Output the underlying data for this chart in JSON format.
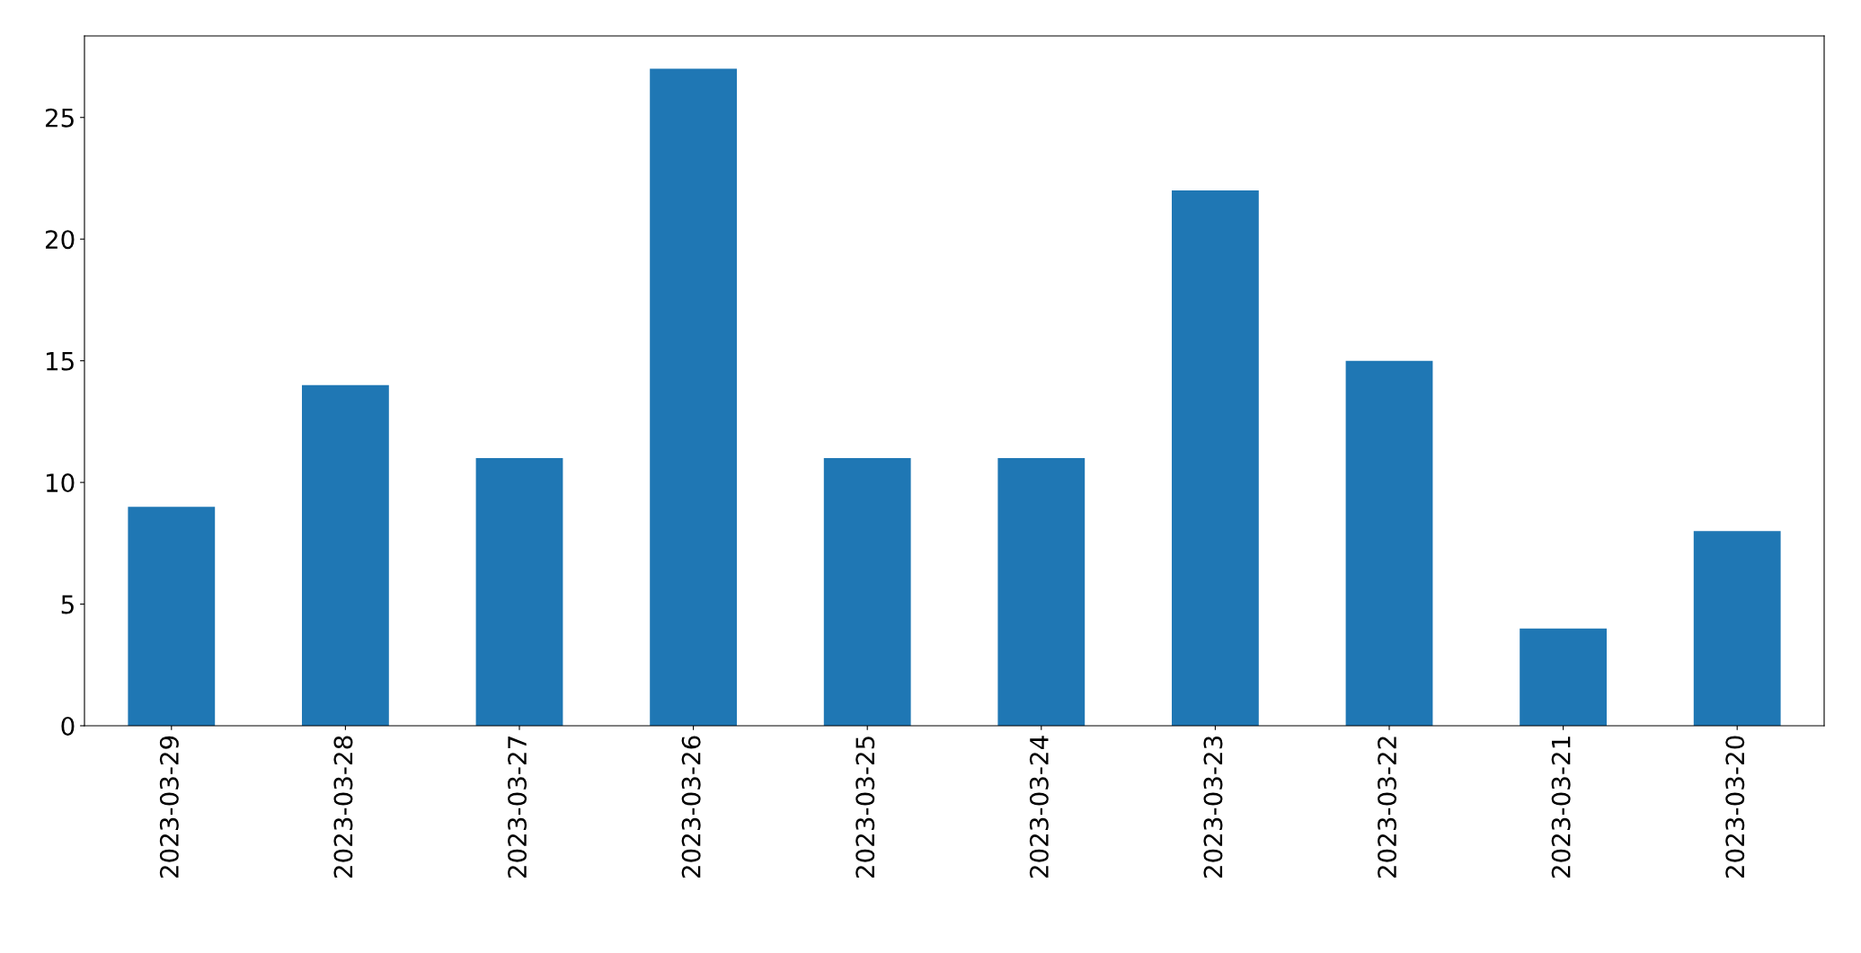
{
  "chart_data": {
    "type": "bar",
    "categories": [
      "2023-03-29",
      "2023-03-28",
      "2023-03-27",
      "2023-03-26",
      "2023-03-25",
      "2023-03-24",
      "2023-03-23",
      "2023-03-22",
      "2023-03-21",
      "2023-03-20"
    ],
    "values": [
      9,
      14,
      11,
      27,
      11,
      11,
      22,
      15,
      4,
      8
    ],
    "color": "#1f77b4",
    "ylim": [
      0,
      28.35
    ],
    "yticks": [
      0,
      5,
      10,
      15,
      20,
      25
    ],
    "grid": false,
    "legend": false
  }
}
